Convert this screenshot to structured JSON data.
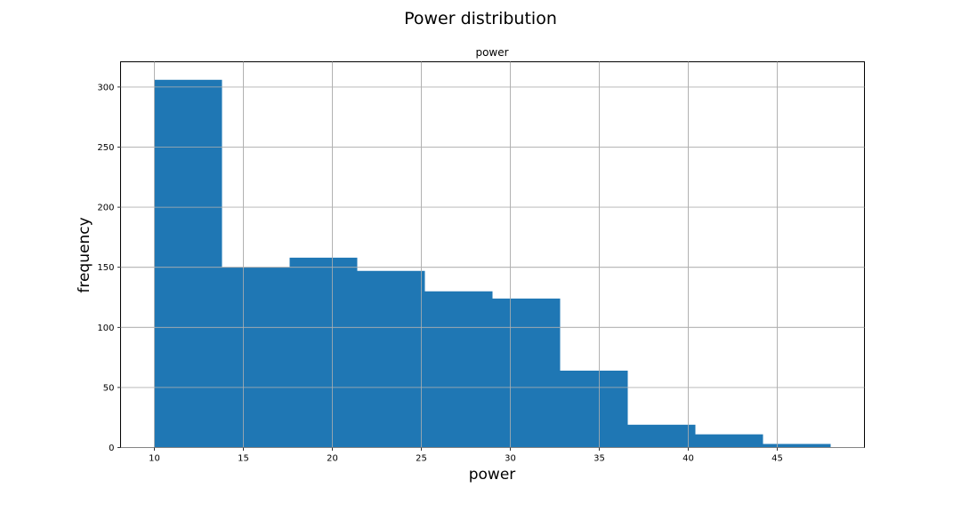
{
  "figure": {
    "suptitle": "Power distribution"
  },
  "chart_data": {
    "type": "bar",
    "title": "power",
    "xlabel": "power",
    "ylabel": "frequency",
    "xlim": [
      8.1,
      49.9
    ],
    "ylim": [
      0,
      321
    ],
    "xticks": [
      10,
      15,
      20,
      25,
      30,
      35,
      40,
      45
    ],
    "yticks": [
      0,
      50,
      100,
      150,
      200,
      250,
      300
    ],
    "grid": true,
    "bar_color": "#1f77b4",
    "bins": [
      {
        "start": 10.0,
        "end": 13.8,
        "count": 306
      },
      {
        "start": 13.8,
        "end": 17.6,
        "count": 150
      },
      {
        "start": 17.6,
        "end": 21.4,
        "count": 158
      },
      {
        "start": 21.4,
        "end": 25.2,
        "count": 147
      },
      {
        "start": 25.2,
        "end": 29.0,
        "count": 130
      },
      {
        "start": 29.0,
        "end": 32.8,
        "count": 124
      },
      {
        "start": 32.8,
        "end": 36.6,
        "count": 64
      },
      {
        "start": 36.6,
        "end": 40.4,
        "count": 19
      },
      {
        "start": 40.4,
        "end": 44.2,
        "count": 11
      },
      {
        "start": 44.2,
        "end": 48.0,
        "count": 3
      }
    ]
  }
}
